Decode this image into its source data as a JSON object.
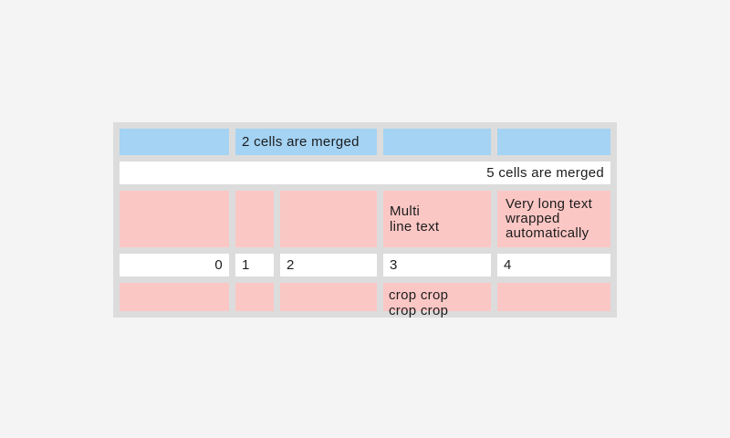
{
  "page": {
    "background_color": "#f4f4f5"
  },
  "table": {
    "colors": {
      "grid_gap": "#dcdcdc",
      "blue_cell": "#a4d3f4",
      "pink_cell": "#fbc7c5",
      "white_cell": "#ffffff",
      "text": "#1c1c1c"
    },
    "row1": {
      "merged_cell_label": "2 cells are merged"
    },
    "row2": {
      "merged_cell_label": "5 cells are merged"
    },
    "row3": {
      "multi_line_label": "Multi\nline text",
      "wrapped_label": "Very long text wrapped automatically"
    },
    "row4": {
      "cells": [
        "0",
        "1",
        "2",
        "3",
        "4"
      ]
    },
    "row5": {
      "cropped_label": "crop crop crop crop"
    }
  }
}
